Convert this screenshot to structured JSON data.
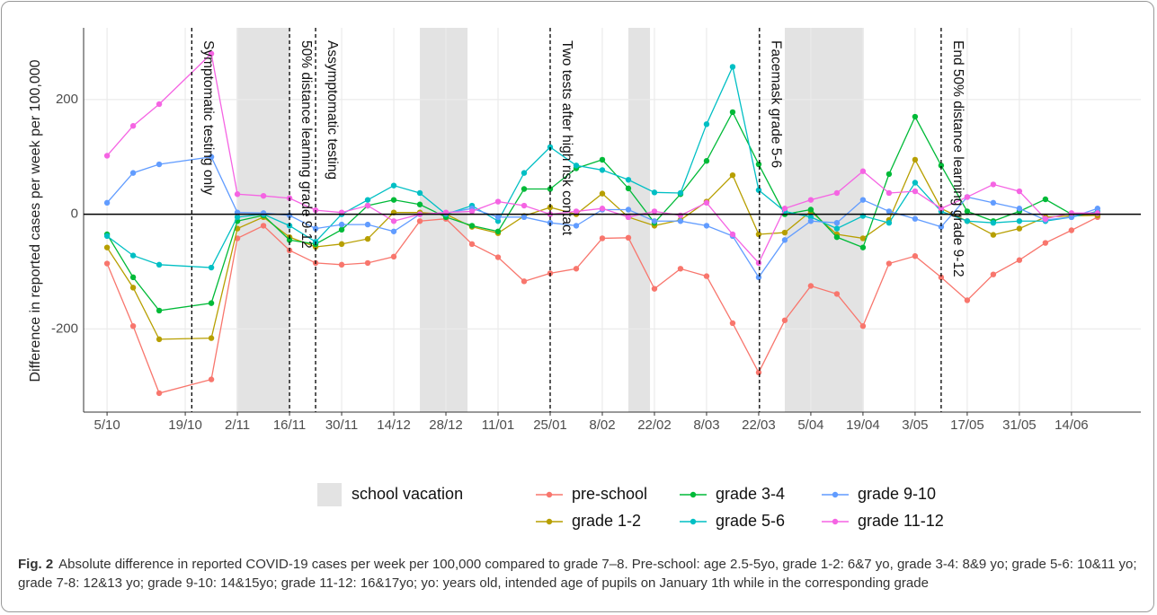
{
  "chart_data": {
    "type": "line",
    "y_label": "Difference in reported cases per week per 100,000",
    "x": [
      0,
      1,
      2,
      4,
      5,
      6,
      7,
      8,
      9,
      10,
      11,
      12,
      13,
      14,
      15,
      16,
      17,
      18,
      19,
      20,
      21,
      22,
      23,
      24,
      25,
      26,
      27,
      28,
      29,
      30,
      31,
      32,
      33,
      34,
      35,
      36,
      37,
      38
    ],
    "xlim": [
      -0.9,
      39.66
    ],
    "xticks": [
      {
        "value": 0,
        "label": "5/10"
      },
      {
        "value": 3,
        "label": "19/10"
      },
      {
        "value": 5,
        "label": "2/11"
      },
      {
        "value": 7,
        "label": "16/11"
      },
      {
        "value": 9,
        "label": "30/11"
      },
      {
        "value": 11,
        "label": "14/12"
      },
      {
        "value": 13,
        "label": "28/12"
      },
      {
        "value": 15,
        "label": "11/01"
      },
      {
        "value": 17,
        "label": "25/01"
      },
      {
        "value": 19,
        "label": "8/02"
      },
      {
        "value": 21,
        "label": "22/02"
      },
      {
        "value": 23,
        "label": "8/03"
      },
      {
        "value": 25,
        "label": "22/03"
      },
      {
        "value": 27,
        "label": "5/04"
      },
      {
        "value": 29,
        "label": "19/04"
      },
      {
        "value": 31,
        "label": "3/05"
      },
      {
        "value": 33,
        "label": "17/05"
      },
      {
        "value": 35,
        "label": "31/05"
      },
      {
        "value": 37,
        "label": "14/06"
      }
    ],
    "ylim": [
      -345,
      325
    ],
    "yticks": [
      -200,
      0,
      200
    ],
    "grid": true,
    "reference_line": 0,
    "shaded": {
      "name": "school vacation",
      "color": "#e3e3e3",
      "ranges": [
        [
          4.97,
          7
        ],
        [
          12,
          13.83
        ],
        [
          20,
          20.83
        ],
        [
          26,
          29.03
        ]
      ]
    },
    "annotations": [
      {
        "x": 3.25,
        "label": "Symptomatic testing only"
      },
      {
        "x": 7,
        "label": "50% distance learning grade 9-12"
      },
      {
        "x": 8,
        "label": "Assymptomatic testing"
      },
      {
        "x": 17,
        "label": "Two tests after high risk contact"
      },
      {
        "x": 25.03,
        "label": "Facemask grade 5-6"
      },
      {
        "x": 32,
        "label": "End 50% distance learning grade 9-12"
      }
    ],
    "series": [
      {
        "name": "pre-school",
        "color": "#F8766D",
        "values": [
          -86,
          -195,
          -312,
          -288,
          -42,
          -20,
          -63,
          -85,
          -88,
          -85,
          -74,
          -12,
          -8,
          -52,
          -75,
          -117,
          -103,
          -95,
          -42,
          -41,
          -130,
          -95,
          -108,
          -190,
          -276,
          -185,
          -125,
          -139,
          -195,
          -86,
          -73,
          -110,
          -150,
          -105,
          -80,
          -50,
          -28,
          -5
        ]
      },
      {
        "name": "grade 1-2",
        "color": "#B79F00",
        "values": [
          -58,
          -128,
          -218,
          -216,
          -25,
          -5,
          -40,
          -57,
          -52,
          -43,
          3,
          3,
          0,
          -22,
          -33,
          -3,
          12,
          0,
          36,
          -5,
          -20,
          -10,
          22,
          68,
          -35,
          -32,
          5,
          -35,
          -42,
          -10,
          95,
          10,
          -12,
          -36,
          -25,
          -5,
          -3,
          -2
        ]
      },
      {
        "name": "grade 3-4",
        "color": "#00BA38",
        "values": [
          -35,
          -110,
          -168,
          -155,
          -12,
          -2,
          -45,
          -52,
          -27,
          15,
          25,
          17,
          -5,
          -20,
          -30,
          44,
          44,
          80,
          95,
          45,
          -15,
          35,
          93,
          178,
          87,
          0,
          8,
          -40,
          -58,
          70,
          170,
          85,
          5,
          -12,
          5,
          26,
          0,
          2
        ]
      },
      {
        "name": "grade 5-6",
        "color": "#00BFC4",
        "values": [
          -38,
          -72,
          -88,
          -93,
          -5,
          0,
          -20,
          -48,
          0,
          25,
          50,
          37,
          0,
          15,
          -12,
          72,
          117,
          85,
          77,
          60,
          38,
          37,
          157,
          257,
          42,
          5,
          -5,
          -25,
          -3,
          -15,
          55,
          5,
          -12,
          -15,
          -12,
          -12,
          -5,
          5
        ]
      },
      {
        "name": "grade 9-10",
        "color": "#619CFF",
        "values": [
          20,
          72,
          87,
          100,
          3,
          2,
          -2,
          -25,
          -18,
          -18,
          -30,
          0,
          2,
          10,
          -5,
          -5,
          -15,
          -20,
          8,
          8,
          -12,
          -12,
          -20,
          -38,
          -110,
          -45,
          -12,
          -15,
          25,
          5,
          -8,
          -22,
          30,
          20,
          10,
          -10,
          -5,
          10
        ]
      },
      {
        "name": "grade 11-12",
        "color": "#F564E3",
        "values": [
          102,
          154,
          192,
          280,
          35,
          32,
          28,
          7,
          3,
          15,
          -12,
          0,
          3,
          5,
          22,
          15,
          0,
          5,
          10,
          -5,
          5,
          -2,
          20,
          -35,
          -85,
          10,
          25,
          37,
          75,
          37,
          40,
          10,
          30,
          52,
          40,
          -8,
          2,
          2
        ]
      }
    ]
  },
  "caption_label": "Fig. 2",
  "caption": "Absolute difference in reported COVID-19 cases per week per 100,000 compared to grade 7–8. Pre-school: age 2.5-5yo, grade 1-2: 6&7 yo, grade 3-4: 8&9 yo; grade 5-6: 10&11 yo; grade 7-8: 12&13 yo; grade 9-10: 14&15yo; grade 11-12: 16&17yo; yo: years old, intended age of pupils on January 1th while in the corresponding grade"
}
